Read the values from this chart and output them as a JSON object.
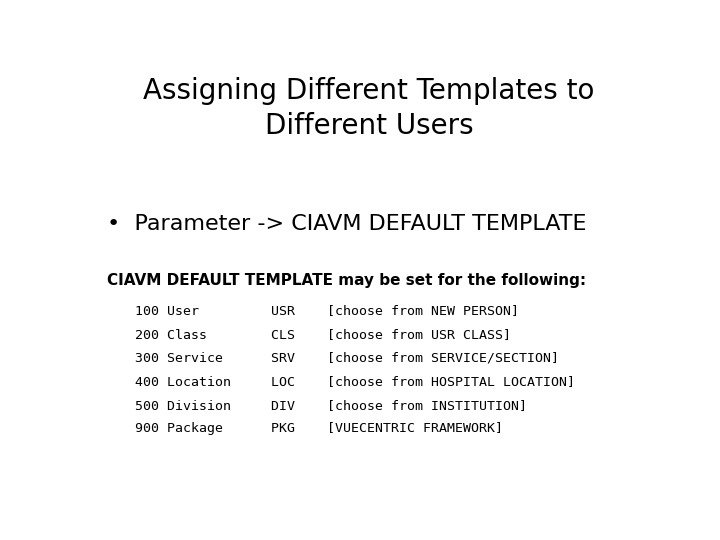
{
  "title": "Assigning Different Templates to\nDifferent Users",
  "bullet": "•  Parameter -> CIAVM DEFAULT TEMPLATE",
  "subheading": "CIAVM DEFAULT TEMPLATE may be set for the following:",
  "code_lines": [
    "100 User         USR    [choose from NEW PERSON]",
    "200 Class        CLS    [choose from USR CLASS]",
    "300 Service      SRV    [choose from SERVICE/SECTION]",
    "400 Location     LOC    [choose from HOSPITAL LOCATION]",
    "500 Division     DIV    [choose from INSTITUTION]",
    "900 Package      PKG    [VUECENTRIC FRAMEWORK]"
  ],
  "background_color": "#ffffff",
  "text_color": "#000000",
  "title_fontsize": 20,
  "bullet_fontsize": 16,
  "subheading_fontsize": 11,
  "code_fontsize": 9.5
}
